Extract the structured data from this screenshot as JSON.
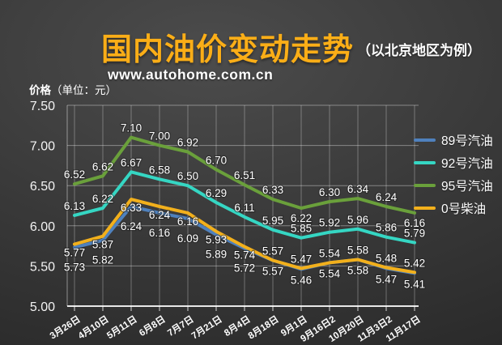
{
  "header": {
    "title": "国内油价变动走势",
    "subtitle": "（以北京地区为例）",
    "url": "www.autohome.com.cn"
  },
  "colors": {
    "title_accent": "#fbae17",
    "grid": "rgba(255,255,255,0.38)",
    "axis": "#e8e8e8",
    "text": "#ffffff"
  },
  "y_axis": {
    "title": "价格",
    "unit": "（单位：元）"
  },
  "chart_data": {
    "type": "line",
    "title": "国内油价变动走势（以北京地区为例）",
    "ylabel": "价格（单位：元）",
    "ylim": [
      5.0,
      7.5
    ],
    "ytick_step": 0.5,
    "grid": true,
    "legend_position": "right",
    "categories": [
      "3月26日",
      "4月10日",
      "5月11日",
      "6月8日",
      "7月7日",
      "7月21日",
      "8月4日",
      "8月18日",
      "9月1日",
      "9月16日2",
      "10月20日",
      "11月3日2",
      "11月17日"
    ],
    "series": [
      {
        "name": "89号汽油",
        "color": "#4f81bd",
        "values": [
          5.73,
          5.82,
          6.24,
          6.16,
          6.09,
          5.89,
          5.72,
          5.57,
          5.46,
          5.54,
          5.58,
          5.47,
          5.41
        ]
      },
      {
        "name": "92号汽油",
        "color": "#35d6c3",
        "values": [
          6.13,
          6.22,
          6.67,
          6.58,
          6.5,
          6.29,
          6.11,
          5.95,
          5.85,
          5.92,
          5.96,
          5.86,
          5.79
        ]
      },
      {
        "name": "95号汽油",
        "color": "#6aa03b",
        "values": [
          6.52,
          6.62,
          7.1,
          7.0,
          6.92,
          6.7,
          6.51,
          6.33,
          6.22,
          6.3,
          6.34,
          6.24,
          6.16
        ]
      },
      {
        "name": "0号柴油",
        "color": "#f2b01c",
        "values": [
          5.77,
          5.87,
          6.33,
          6.24,
          6.16,
          5.93,
          5.74,
          5.57,
          5.47,
          5.54,
          5.58,
          5.48,
          5.42
        ]
      }
    ]
  }
}
